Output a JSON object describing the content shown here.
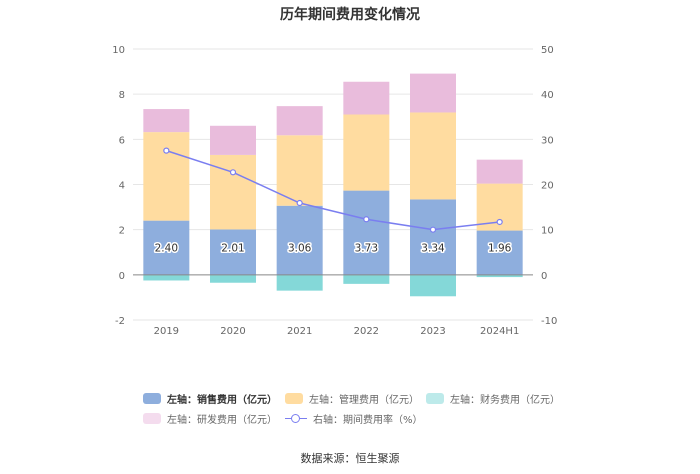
{
  "main": {
    "title": "历年期间费用变化情况",
    "source": "数据来源：恒生聚源"
  },
  "colors": {
    "sales": "#8eaedd",
    "admin": "#ffdca0",
    "finance": "#84d8d8",
    "rnd": "#e9bcdc",
    "rate": "#7a7ef0",
    "grid": "#e6e6e6",
    "axis_text": "#666666"
  },
  "chart_data": {
    "type": "bar",
    "stacked": true,
    "title": "历年期间费用变化情况",
    "categories": [
      "2019",
      "2020",
      "2021",
      "2022",
      "2023",
      "2024H1"
    ],
    "y_left": {
      "min": -2,
      "max": 10,
      "ticks": [
        "-2",
        "0",
        "2",
        "4",
        "6",
        "8",
        "10"
      ]
    },
    "y_right": {
      "min": -10,
      "max": 50,
      "ticks": [
        "-10",
        "0",
        "10",
        "20",
        "30",
        "40",
        "50"
      ]
    },
    "series": [
      {
        "name": "左轴：销售费用（亿元）",
        "axis": "left",
        "kind": "bar",
        "values": [
          2.4,
          2.01,
          3.06,
          3.73,
          3.34,
          1.96
        ],
        "labels": [
          "2.40",
          "2.01",
          "3.06",
          "3.73",
          "3.34",
          "1.96"
        ]
      },
      {
        "name": "左轴：管理费用（亿元）",
        "axis": "left",
        "kind": "bar",
        "values": [
          3.92,
          3.3,
          3.12,
          3.37,
          3.85,
          2.08
        ]
      },
      {
        "name": "左轴：财务费用（亿元）",
        "axis": "left",
        "kind": "bar",
        "values": [
          -0.25,
          -0.35,
          -0.7,
          -0.4,
          -0.95,
          -0.1
        ]
      },
      {
        "name": "左轴：研发费用（亿元）",
        "axis": "left",
        "kind": "bar",
        "values": [
          1.02,
          1.29,
          1.29,
          1.45,
          1.72,
          1.06
        ]
      },
      {
        "name": "右轴：期间费用率（%）",
        "axis": "right",
        "kind": "line",
        "values": [
          27.5,
          22.7,
          15.9,
          12.3,
          10.0,
          11.7
        ]
      }
    ],
    "legend": {
      "position": "bottom",
      "items": [
        "左轴：销售费用（亿元）",
        "左轴：管理费用（亿元）",
        "左轴：财务费用（亿元）",
        "左轴：研发费用（亿元）",
        "右轴：期间费用率（%）"
      ]
    }
  }
}
